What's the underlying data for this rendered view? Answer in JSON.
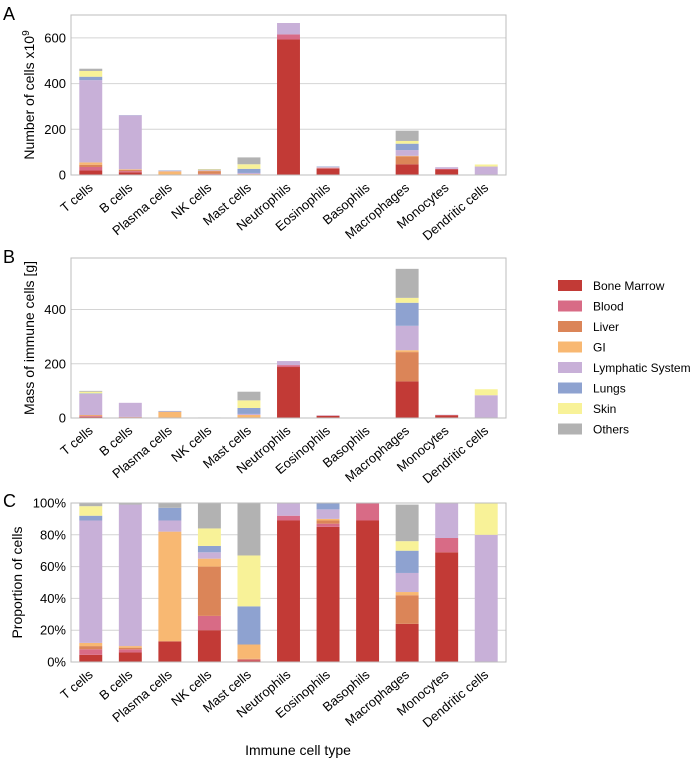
{
  "legend": {
    "entries": [
      {
        "name": "Bone Marrow",
        "color": "#c23a36"
      },
      {
        "name": "Blood",
        "color": "#d86b86"
      },
      {
        "name": "Liver",
        "color": "#db8558"
      },
      {
        "name": "GI",
        "color": "#f8b872"
      },
      {
        "name": "Lymphatic System",
        "color": "#c8b0d8"
      },
      {
        "name": "Lungs",
        "color": "#8ea2d0"
      },
      {
        "name": "Skin",
        "color": "#f8f298"
      },
      {
        "name": "Others",
        "color": "#b2b2b2"
      }
    ]
  },
  "x_title": "Immune cell type",
  "chart_data": [
    {
      "type": "bar",
      "panel_label": "A",
      "ylabel": "Number of cells x10",
      "ylabel_sup": "9",
      "ylim": [
        0,
        700
      ],
      "yticks": [
        0,
        200,
        400,
        600
      ],
      "ytick_format": "plain",
      "grid": true,
      "stacked": true,
      "categories": [
        "T cells",
        "B cells",
        "Plasma cells",
        "NK cells",
        "Mast cells",
        "Neutrophils",
        "Eosinophils",
        "Basophils",
        "Macrophages",
        "Monocytes",
        "Dendritic cells"
      ],
      "series": [
        {
          "name": "Bone Marrow",
          "values": [
            20,
            12,
            0,
            3,
            1,
            593,
            28,
            0.3,
            47,
            24,
            1
          ]
        },
        {
          "name": "Blood",
          "values": [
            15,
            5,
            0,
            2,
            0,
            22,
            2,
            0.05,
            0,
            3,
            0
          ]
        },
        {
          "name": "Liver",
          "values": [
            10,
            5,
            0,
            12,
            0,
            0,
            1,
            0,
            35,
            0,
            0
          ]
        },
        {
          "name": "GI",
          "values": [
            10,
            3,
            16,
            2,
            3,
            0,
            1,
            0,
            2,
            0,
            0
          ]
        },
        {
          "name": "Lymphatic System",
          "values": [
            360,
            236,
            2,
            2,
            5,
            50,
            3,
            0,
            25,
            7,
            36
          ]
        },
        {
          "name": "Lungs",
          "values": [
            15,
            1,
            2,
            1,
            18,
            0,
            2,
            0,
            28,
            0,
            0
          ]
        },
        {
          "name": "Skin",
          "values": [
            25,
            0,
            0,
            2,
            20,
            0,
            0,
            0,
            12,
            0,
            9
          ]
        },
        {
          "name": "Others",
          "values": [
            10,
            0,
            0,
            2,
            30,
            0,
            0,
            0,
            45,
            0,
            0
          ]
        }
      ]
    },
    {
      "type": "bar",
      "panel_label": "B",
      "ylabel": "Mass of immune cells [g]",
      "ylim": [
        0,
        590
      ],
      "yticks": [
        0,
        200,
        400
      ],
      "ytick_format": "plain",
      "grid": true,
      "stacked": true,
      "categories": [
        "T cells",
        "B cells",
        "Plasma cells",
        "NK cells",
        "Mast cells",
        "Neutrophils",
        "Eosinophils",
        "Basophils",
        "Macrophages",
        "Monocytes",
        "Dendritic cells"
      ],
      "series": [
        {
          "name": "Bone Marrow",
          "values": [
            4,
            2,
            1,
            0.5,
            1,
            188,
            8,
            0.1,
            135,
            10,
            0
          ]
        },
        {
          "name": "Blood",
          "values": [
            3,
            1,
            0,
            0.2,
            0,
            7,
            1,
            0.02,
            0,
            1,
            0
          ]
        },
        {
          "name": "Liver",
          "values": [
            2,
            1,
            0,
            0.6,
            0,
            0,
            0,
            0,
            108,
            0,
            0
          ]
        },
        {
          "name": "GI",
          "values": [
            2,
            0,
            22,
            0.1,
            10,
            0,
            0,
            0,
            7,
            0,
            0
          ]
        },
        {
          "name": "Lymphatic System",
          "values": [
            78,
            52,
            1,
            0.1,
            4,
            15,
            1,
            0,
            90,
            1,
            84
          ]
        },
        {
          "name": "Lungs",
          "values": [
            2,
            0,
            2,
            0.1,
            22,
            0,
            0,
            0,
            85,
            0,
            0
          ]
        },
        {
          "name": "Skin",
          "values": [
            6,
            0,
            0,
            0.2,
            28,
            0,
            0,
            0,
            18,
            0,
            22
          ]
        },
        {
          "name": "Others",
          "values": [
            3,
            0,
            0,
            0.2,
            32,
            0,
            0,
            0,
            107,
            0,
            0
          ]
        }
      ]
    },
    {
      "type": "bar",
      "panel_label": "C",
      "ylabel": "Proportion of cells",
      "ylim": [
        0,
        1
      ],
      "yticks": [
        0,
        0.2,
        0.4,
        0.6,
        0.8,
        1.0
      ],
      "ytick_format": "percent",
      "grid": true,
      "stacked": true,
      "categories": [
        "T cells",
        "B cells",
        "Plasma cells",
        "NK cells",
        "Mast cells",
        "Neutrophils",
        "Eosinophils",
        "Basophils",
        "Macrophages",
        "Monocytes",
        "Dendritic cells"
      ],
      "series": [
        {
          "name": "Bone Marrow",
          "values": [
            0.045,
            0.06,
            0.13,
            0.2,
            0.01,
            0.89,
            0.85,
            0.89,
            0.24,
            0.69,
            0.0
          ]
        },
        {
          "name": "Blood",
          "values": [
            0.035,
            0.02,
            0.0,
            0.09,
            0.005,
            0.03,
            0.02,
            0.11,
            0.0,
            0.09,
            0.0
          ]
        },
        {
          "name": "Liver",
          "values": [
            0.02,
            0.01,
            0.0,
            0.31,
            0.005,
            0.0,
            0.02,
            0.0,
            0.18,
            0.0,
            0.0
          ]
        },
        {
          "name": "GI",
          "values": [
            0.02,
            0.01,
            0.69,
            0.05,
            0.09,
            0.0,
            0.01,
            0.0,
            0.02,
            0.0,
            0.0
          ]
        },
        {
          "name": "Lymphatic System",
          "values": [
            0.77,
            0.89,
            0.07,
            0.04,
            0.0,
            0.08,
            0.06,
            0.0,
            0.12,
            0.22,
            0.8
          ]
        },
        {
          "name": "Lungs",
          "values": [
            0.03,
            0.0,
            0.08,
            0.04,
            0.24,
            0.0,
            0.04,
            0.0,
            0.14,
            0.0,
            0.0
          ]
        },
        {
          "name": "Skin",
          "values": [
            0.06,
            0.0,
            0.0,
            0.11,
            0.32,
            0.0,
            0.0,
            0.0,
            0.06,
            0.0,
            0.2
          ]
        },
        {
          "name": "Others",
          "values": [
            0.02,
            0.01,
            0.03,
            0.16,
            0.33,
            0.0,
            0.0,
            0.0,
            0.23,
            0.0,
            0.0
          ]
        }
      ]
    }
  ]
}
